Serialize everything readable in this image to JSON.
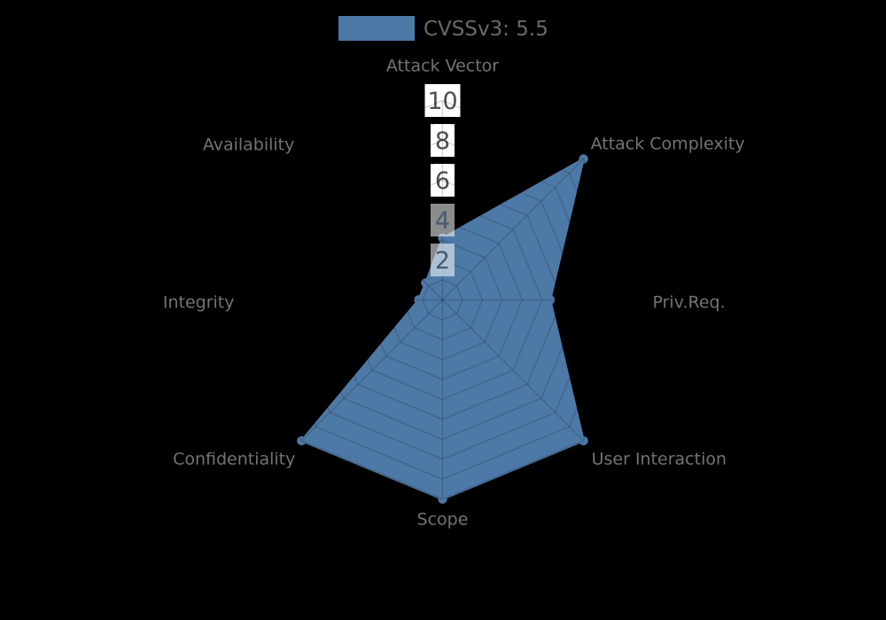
{
  "chart_data": {
    "type": "radar",
    "legend": {
      "position": "top-center",
      "entries": [
        {
          "label": "CVSSv3: 5.5",
          "color": "#4d79a6"
        }
      ]
    },
    "categories": [
      "Attack Vector",
      "Attack Complexity",
      "Priv.Req.",
      "User Interaction",
      "Scope",
      "Confidentiality",
      "Integrity",
      "Availability"
    ],
    "series": [
      {
        "name": "CVSSv3: 5.5",
        "color": "#4d79a6",
        "values": [
          3.1,
          10,
          5.4,
          10,
          10,
          10,
          1.2,
          1.2
        ]
      }
    ],
    "rlim": [
      0,
      10
    ],
    "tick_values": [
      2,
      4,
      6,
      8,
      10
    ],
    "tick_labels": [
      "2",
      "4",
      "6",
      "8",
      "10"
    ],
    "minor_ring_step": 1,
    "grid": true,
    "start_axis": "top",
    "direction": "clockwise"
  },
  "colors": {
    "background": "#000000",
    "series_fill": "#4d79a6",
    "axis_label_text": "#737373",
    "legend_text": "#696969",
    "tick_text": "#4f4f4f",
    "tick_text_overlay": "#49586c",
    "tick_box": "#ffffff",
    "tick_box_overlay": "rgba(255,255,255,0.55)",
    "grid_line": "rgba(0,0,0,0.17)"
  }
}
